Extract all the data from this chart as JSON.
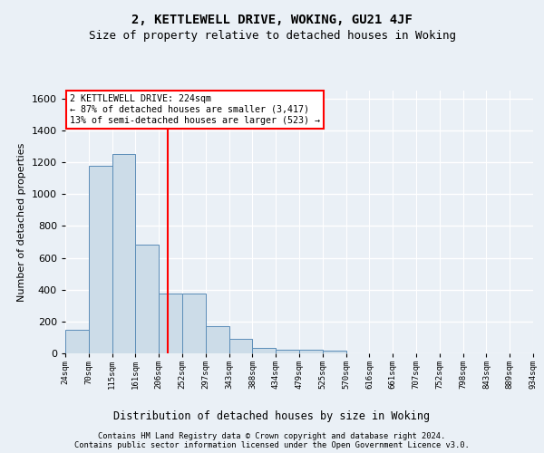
{
  "title": "2, KETTLEWELL DRIVE, WOKING, GU21 4JF",
  "subtitle": "Size of property relative to detached houses in Woking",
  "xlabel": "Distribution of detached houses by size in Woking",
  "ylabel": "Number of detached properties",
  "bar_color": "#ccdce8",
  "bar_edge_color": "#5b8db8",
  "bin_labels": [
    "24sqm",
    "70sqm",
    "115sqm",
    "161sqm",
    "206sqm",
    "252sqm",
    "297sqm",
    "343sqm",
    "388sqm",
    "434sqm",
    "479sqm",
    "525sqm",
    "570sqm",
    "616sqm",
    "661sqm",
    "707sqm",
    "752sqm",
    "798sqm",
    "843sqm",
    "889sqm",
    "934sqm"
  ],
  "bar_heights": [
    150,
    1175,
    1250,
    680,
    375,
    375,
    170,
    90,
    35,
    25,
    20,
    15,
    0,
    0,
    0,
    0,
    0,
    0,
    0,
    0
  ],
  "ylim": [
    0,
    1650
  ],
  "yticks": [
    0,
    200,
    400,
    600,
    800,
    1000,
    1200,
    1400,
    1600
  ],
  "property_sqm": 224,
  "bin_edges_sqm": [
    24,
    70,
    115,
    161,
    206,
    252,
    297,
    343,
    388,
    434,
    479,
    525,
    570,
    616,
    661,
    707,
    752,
    798,
    843,
    889,
    934
  ],
  "annotation_text": "2 KETTLEWELL DRIVE: 224sqm\n← 87% of detached houses are smaller (3,417)\n13% of semi-detached houses are larger (523) →",
  "footnote1": "Contains HM Land Registry data © Crown copyright and database right 2024.",
  "footnote2": "Contains public sector information licensed under the Open Government Licence v3.0.",
  "bg_color": "#eaf0f6",
  "plot_bg_color": "#eaf0f6",
  "grid_color": "#ffffff",
  "title_fontsize": 10,
  "subtitle_fontsize": 9
}
